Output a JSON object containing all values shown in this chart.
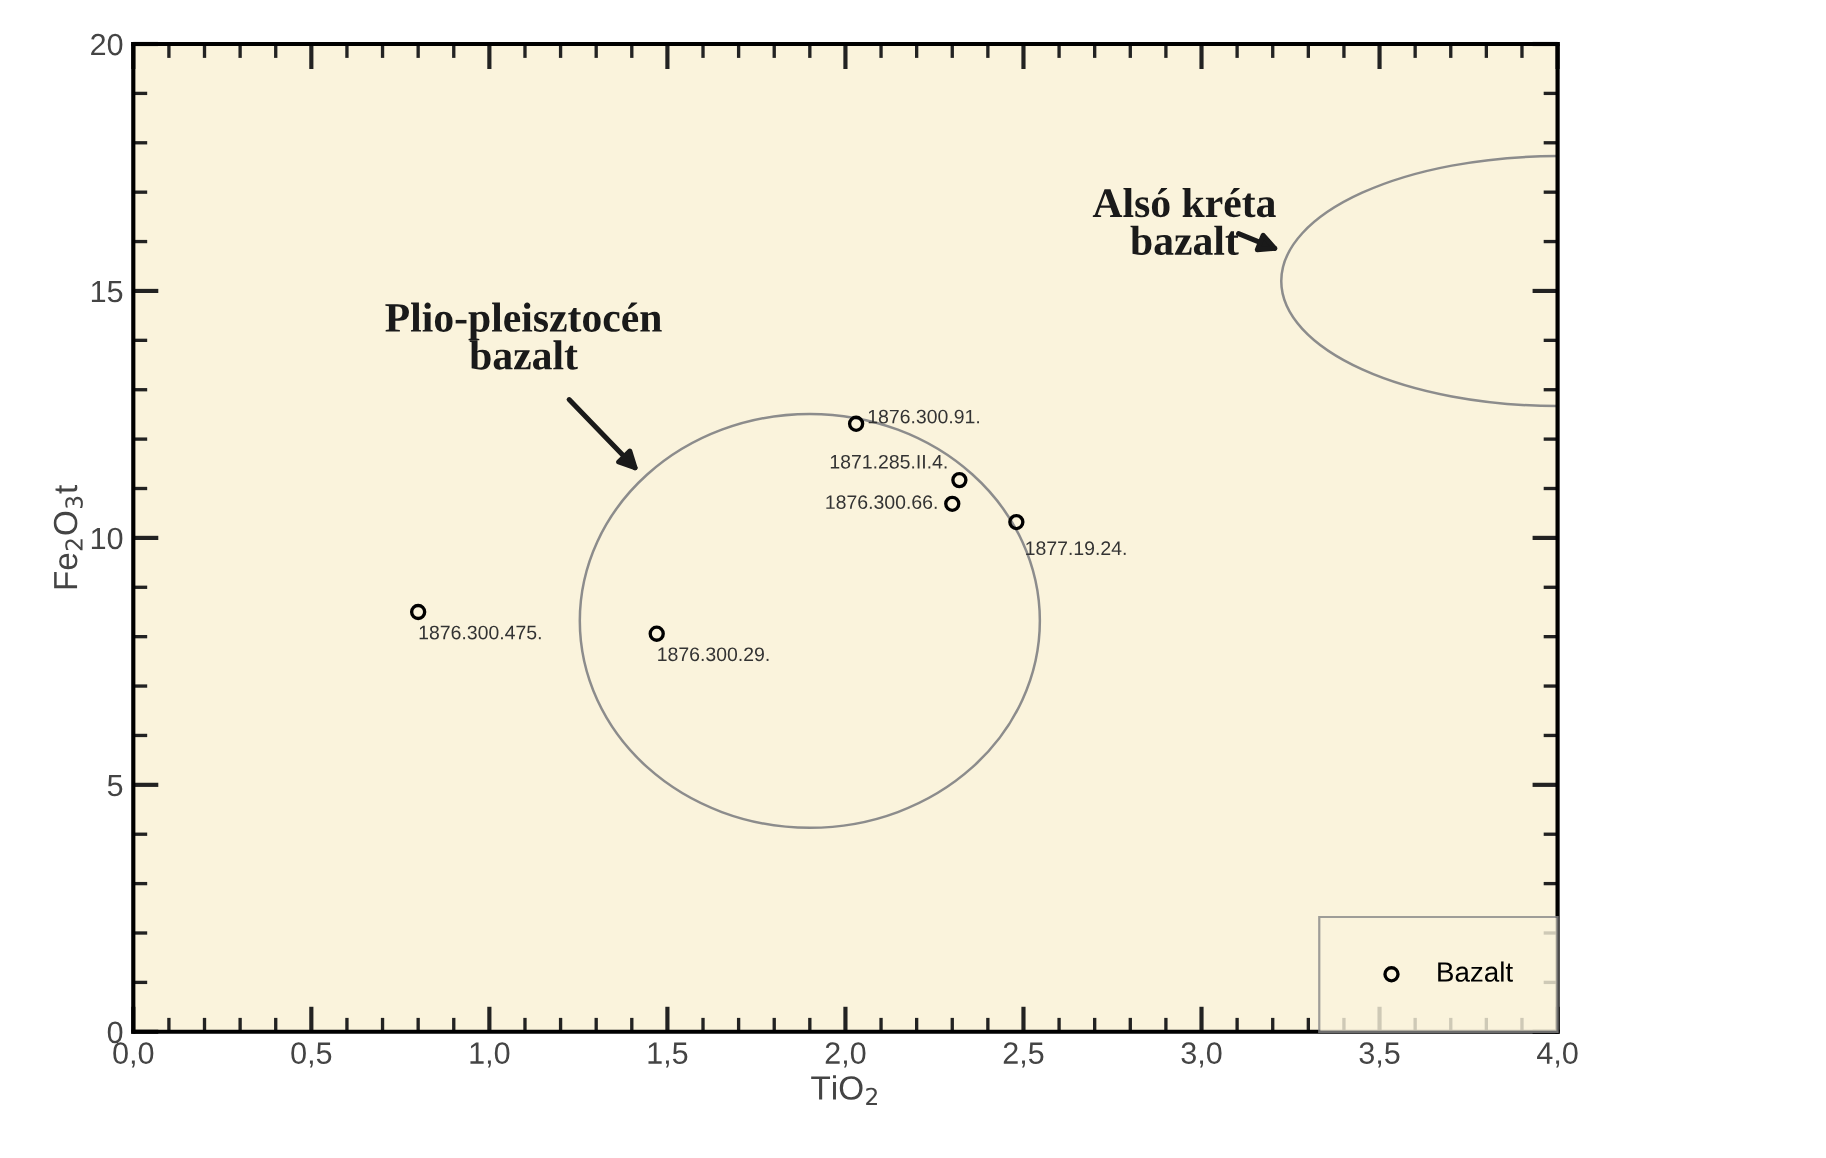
{
  "chart_data": {
    "type": "scatter",
    "xlabel": "TiO$_{2}$",
    "ylabel": "Fe$_{2}$O$_{3}$t",
    "xlim": [
      0,
      4.0
    ],
    "ylim": [
      0,
      20
    ],
    "xticks": [
      {
        "value": 0,
        "label": "0,0"
      },
      {
        "value": 0.5,
        "label": "0,5"
      },
      {
        "value": 1.0,
        "label": "1,0"
      },
      {
        "value": 1.5,
        "label": "1,5"
      },
      {
        "value": 2.0,
        "label": "2,0"
      },
      {
        "value": 2.5,
        "label": "2,5"
      },
      {
        "value": 3.0,
        "label": "3,0"
      },
      {
        "value": 3.5,
        "label": "3,5"
      },
      {
        "value": 4.0,
        "label": "4,0"
      }
    ],
    "yticks": [
      0,
      5,
      10,
      15,
      20
    ],
    "legend": "bottom right",
    "marker": "circle",
    "series": [
      {
        "name": "Bazalt",
        "color": "#000000",
        "x": [
          0.8,
          1.47,
          2.03,
          2.32,
          2.3,
          2.48
        ],
        "values": [
          8.5,
          8.06,
          12.31,
          11.17,
          10.69,
          10.32
        ]
      }
    ],
    "annotations": [
      "Plio-pleisztocén\nbazalt",
      "Alsó kréta\nbazalt",
      {
        "text": "1876.300.475.",
        "x": 0.8,
        "y": 8.5
      },
      {
        "text": "1876.300.29.",
        "x": 1.47,
        "y": 8.06
      },
      {
        "text": "1876.300.91.",
        "x": 2.03,
        "y": 12.31
      },
      {
        "text": "1871.285.II.4.",
        "x": 2.32,
        "y": 11.17
      },
      {
        "text": "1876.300.66.",
        "x": 2.3,
        "y": 10.69
      },
      {
        "text": "1877.19.24.",
        "x": 2.48,
        "y": 10.32
      }
    ]
  }
}
